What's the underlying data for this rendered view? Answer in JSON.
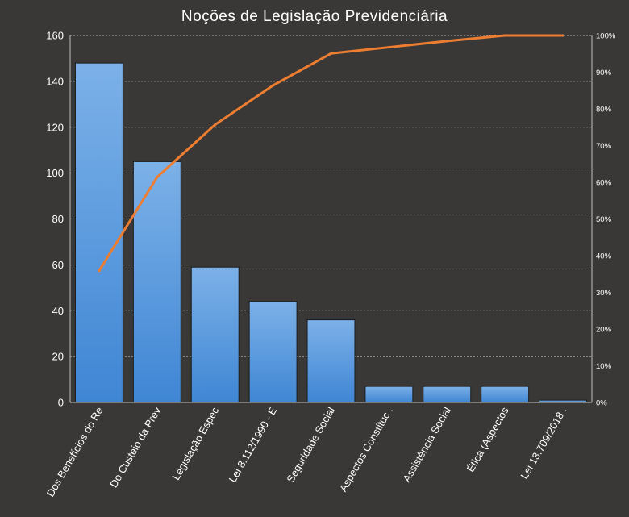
{
  "chart_data": {
    "type": "bar",
    "title": "Noções de Legislação Previdenciária",
    "categories": [
      "Dos Benefícios do Re",
      "Do Custeio da Prev",
      "Legislação Espec",
      "Lei 8.112/1990 - E",
      "Seguridade Social",
      "Aspectos Constituc .",
      "Assistência Social",
      "Ética (Aspectos",
      "Lei 13.709/2018 ."
    ],
    "series": [
      {
        "type": "bar",
        "values": [
          148,
          105,
          59,
          44,
          36,
          7,
          7,
          7,
          1
        ],
        "color": "#4a90d9"
      },
      {
        "type": "line",
        "axis": "secondary",
        "values": [
          35.9,
          61.4,
          75.7,
          86.4,
          95.1,
          96.8,
          98.5,
          100,
          100
        ],
        "color": "#ed7d31"
      }
    ],
    "yaxis": {
      "min": 0,
      "max": 160,
      "step": 20,
      "ticks": [
        "0",
        "20",
        "40",
        "60",
        "80",
        "100",
        "120",
        "140",
        "160"
      ]
    },
    "y2axis": {
      "min": 0,
      "max": 100,
      "step": 10,
      "ticks": [
        "0%",
        "10%",
        "20%",
        "30%",
        "40%",
        "50%",
        "60%",
        "70%",
        "80%",
        "90%",
        "100%"
      ]
    },
    "grid": true,
    "legend": "none"
  }
}
